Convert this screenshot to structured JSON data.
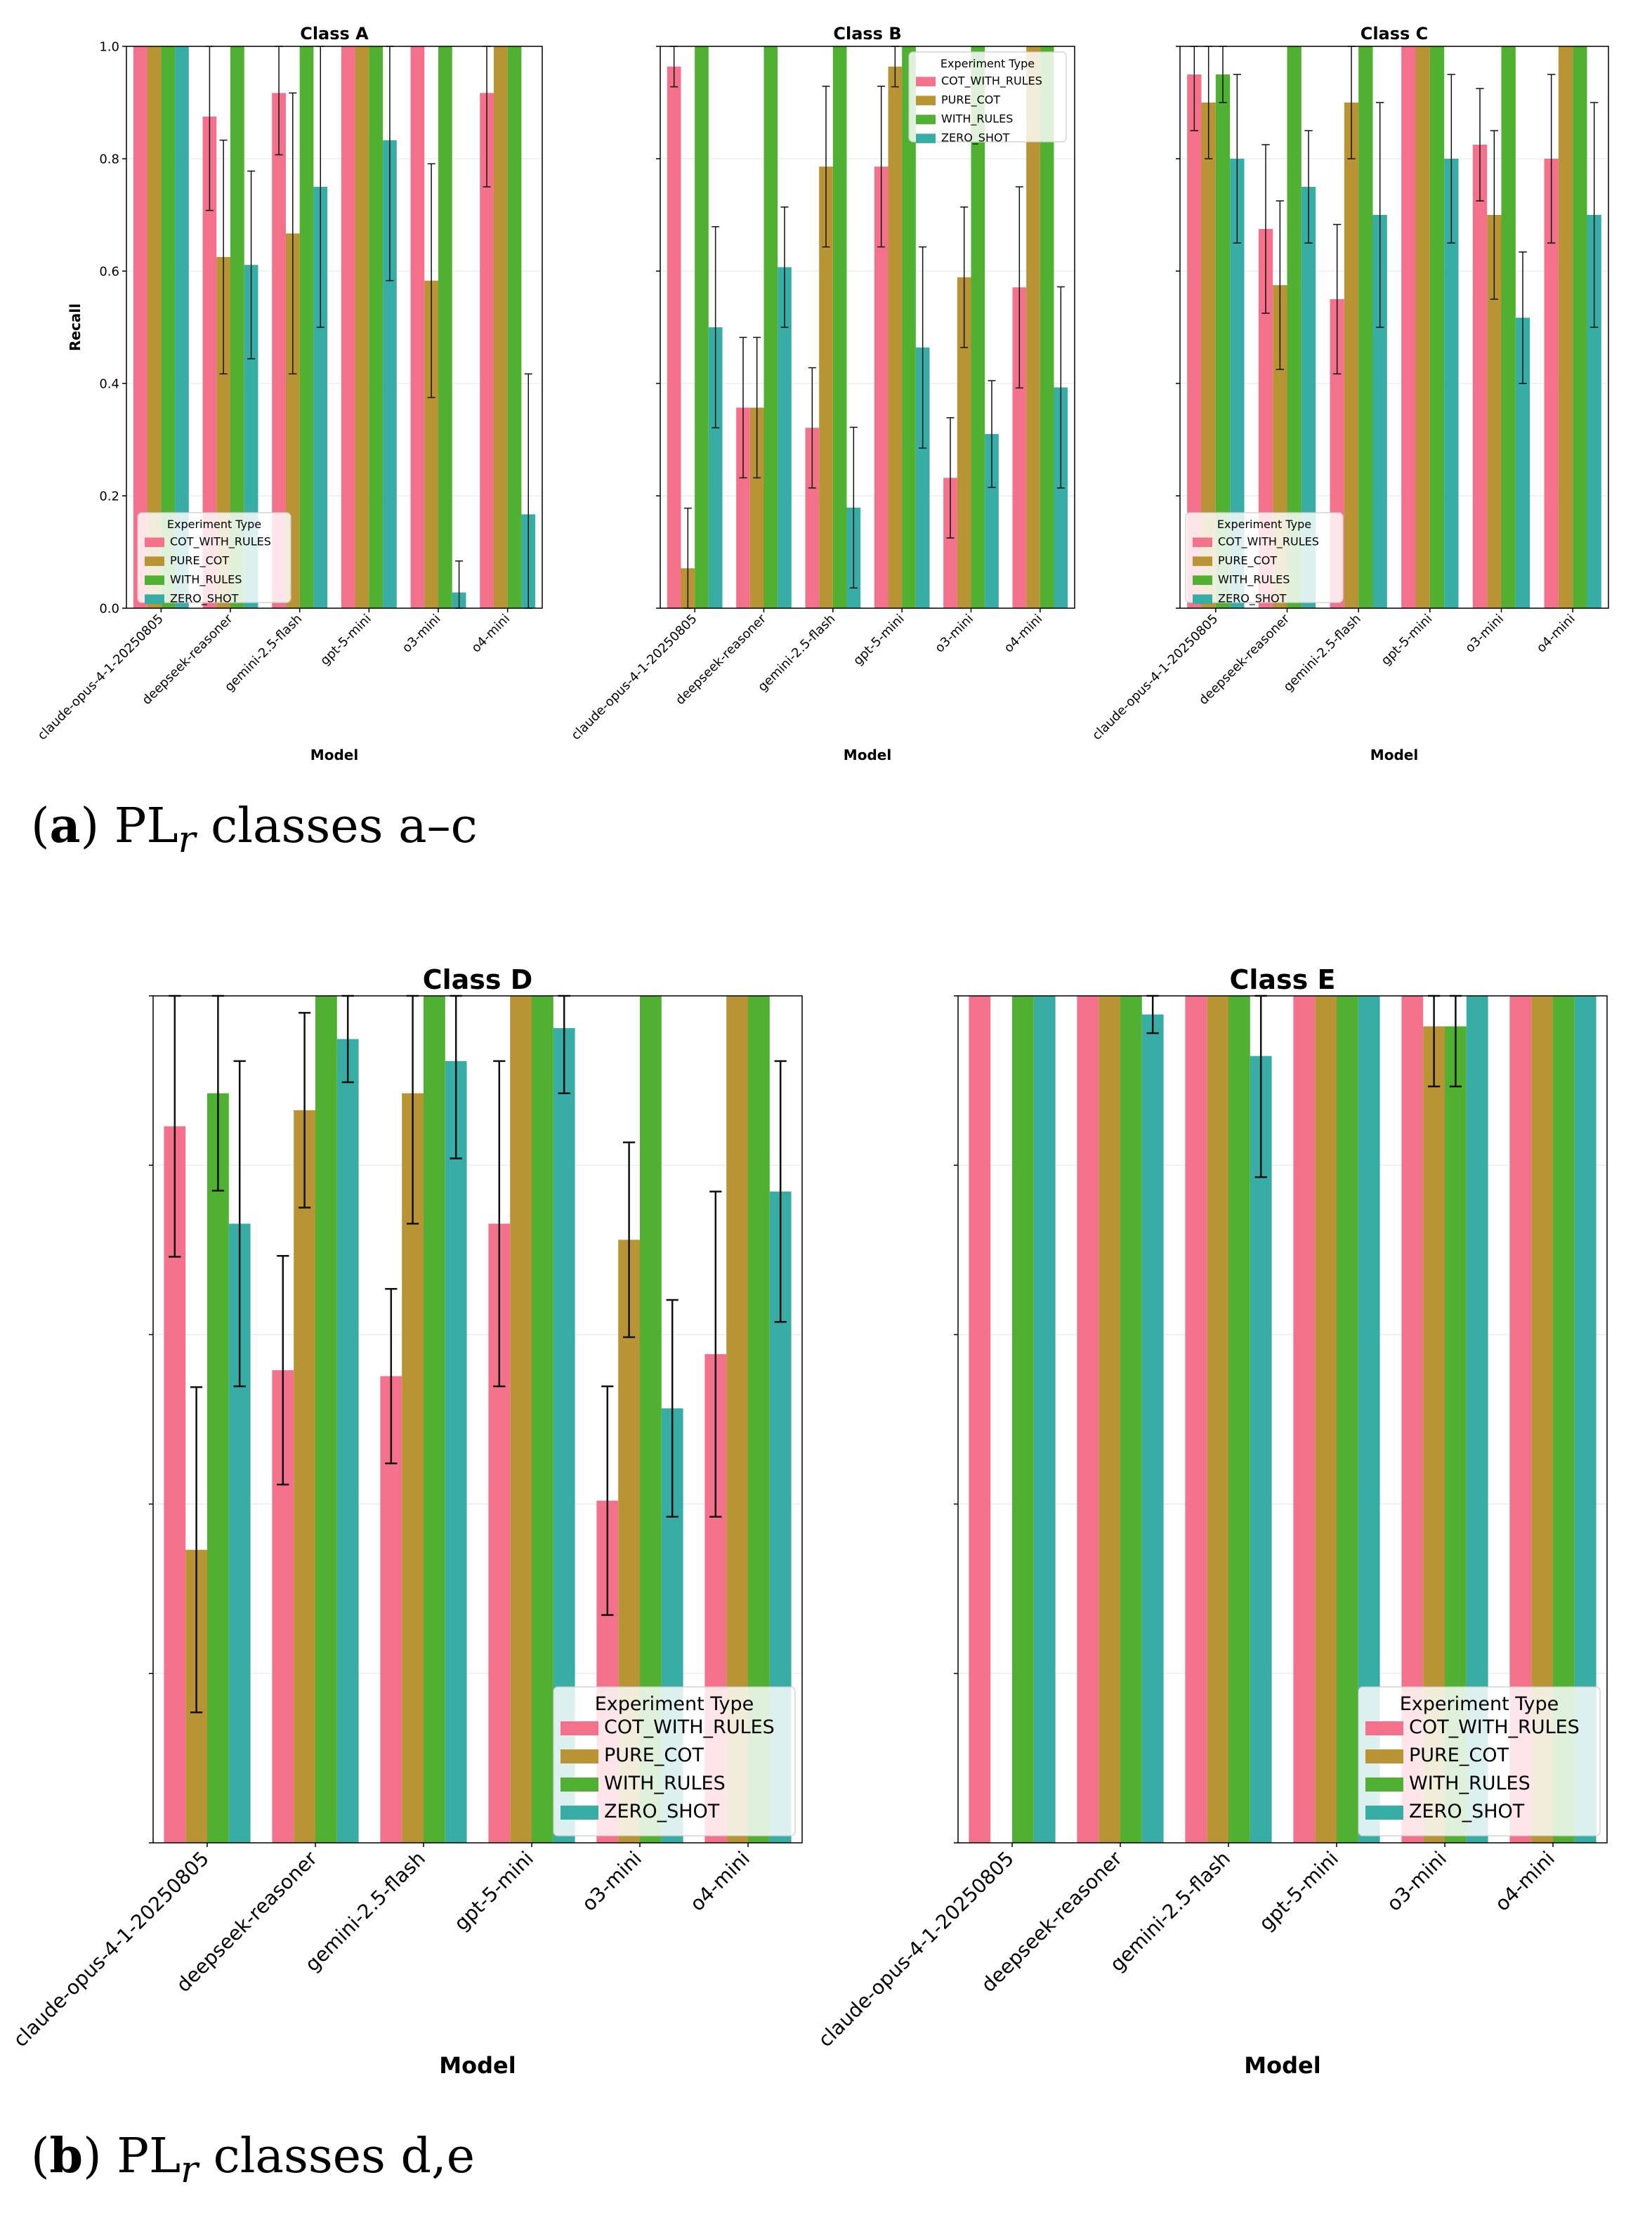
{
  "figure": {
    "caption_a": {
      "letter": "a",
      "prefix": "PL",
      "sub": "r",
      "text": "classes a–c"
    },
    "caption_b": {
      "letter": "b",
      "prefix": "PL",
      "sub": "r",
      "text": "classes d,e"
    }
  },
  "palette": {
    "COT_WITH_RULES": "#f3718a",
    "PURE_COT": "#b99435",
    "WITH_RULES": "#4fb032",
    "ZERO_SHOT": "#38ada5"
  },
  "chart_data": [
    {
      "id": "class-a",
      "type": "bar",
      "title": "Class A",
      "xlabel": "Model",
      "ylabel": "Recall",
      "ylim": [
        0,
        1.0
      ],
      "yticks": [
        "0.0",
        "0.2",
        "0.4",
        "0.6",
        "0.8",
        "1.0"
      ],
      "show_ytick_labels": true,
      "legend_title": "Experiment Type",
      "legend_position": "bottom-left",
      "categories": [
        "claude-opus-4-1-20250805",
        "deepseek-reasoner",
        "gemini-2.5-flash",
        "gpt-5-mini",
        "o3-mini",
        "o4-mini"
      ],
      "series": [
        {
          "name": "COT_WITH_RULES",
          "values": [
            1.0,
            0.875,
            0.917,
            1.0,
            1.0,
            0.917
          ],
          "err": [
            0,
            0.167,
            0.11,
            0,
            0,
            0.167
          ]
        },
        {
          "name": "PURE_COT",
          "values": [
            1.0,
            0.625,
            0.667,
            1.0,
            0.583,
            1.0
          ],
          "err": [
            0,
            0.208,
            0.25,
            0,
            0.208,
            0
          ]
        },
        {
          "name": "WITH_RULES",
          "values": [
            1.0,
            1.0,
            1.0,
            1.0,
            1.0,
            1.0
          ],
          "err": [
            0,
            0,
            0,
            0,
            0,
            0
          ]
        },
        {
          "name": "ZERO_SHOT",
          "values": [
            1.0,
            0.611,
            0.75,
            0.833,
            0.028,
            0.167
          ],
          "err": [
            0,
            0.167,
            0.25,
            0.25,
            0.056,
            0.25
          ]
        }
      ]
    },
    {
      "id": "class-b",
      "type": "bar",
      "title": "Class B",
      "xlabel": "Model",
      "ylabel": "",
      "ylim": [
        0,
        1.0
      ],
      "yticks": [
        "0.0",
        "0.2",
        "0.4",
        "0.6",
        "0.8",
        "1.0"
      ],
      "show_ytick_labels": false,
      "legend_title": "Experiment Type",
      "legend_position": "top-right",
      "categories": [
        "claude-opus-4-1-20250805",
        "deepseek-reasoner",
        "gemini-2.5-flash",
        "gpt-5-mini",
        "o3-mini",
        "o4-mini"
      ],
      "series": [
        {
          "name": "COT_WITH_RULES",
          "values": [
            0.964,
            0.357,
            0.321,
            0.786,
            0.232,
            0.571
          ],
          "err": [
            0.036,
            0.125,
            0.107,
            0.143,
            0.107,
            0.179
          ]
        },
        {
          "name": "PURE_COT",
          "values": [
            0.071,
            0.357,
            0.786,
            0.964,
            0.589,
            1.0
          ],
          "err": [
            0.107,
            0.125,
            0.143,
            0.036,
            0.125,
            0
          ]
        },
        {
          "name": "WITH_RULES",
          "values": [
            1.0,
            1.0,
            1.0,
            1.0,
            1.0,
            1.0
          ],
          "err": [
            0,
            0,
            0,
            0,
            0,
            0
          ]
        },
        {
          "name": "ZERO_SHOT",
          "values": [
            0.5,
            0.607,
            0.179,
            0.464,
            0.31,
            0.393
          ],
          "err": [
            0.179,
            0.107,
            0.143,
            0.179,
            0.095,
            0.179
          ]
        }
      ]
    },
    {
      "id": "class-c",
      "type": "bar",
      "title": "Class C",
      "xlabel": "Model",
      "ylabel": "",
      "ylim": [
        0,
        1.0
      ],
      "yticks": [
        "0.0",
        "0.2",
        "0.4",
        "0.6",
        "0.8",
        "1.0"
      ],
      "show_ytick_labels": false,
      "legend_title": "Experiment Type",
      "legend_position": "bottom-left",
      "categories": [
        "claude-opus-4-1-20250805",
        "deepseek-reasoner",
        "gemini-2.5-flash",
        "gpt-5-mini",
        "o3-mini",
        "o4-mini"
      ],
      "series": [
        {
          "name": "COT_WITH_RULES",
          "values": [
            0.95,
            0.675,
            0.55,
            1.0,
            0.825,
            0.8
          ],
          "err": [
            0.1,
            0.15,
            0.133,
            0,
            0.1,
            0.15
          ]
        },
        {
          "name": "PURE_COT",
          "values": [
            0.9,
            0.575,
            0.9,
            1.0,
            0.7,
            1.0
          ],
          "err": [
            0.1,
            0.15,
            0.1,
            0,
            0.15,
            0
          ]
        },
        {
          "name": "WITH_RULES",
          "values": [
            0.95,
            1.0,
            1.0,
            1.0,
            1.0,
            1.0
          ],
          "err": [
            0.05,
            0,
            0,
            0,
            0,
            0
          ]
        },
        {
          "name": "ZERO_SHOT",
          "values": [
            0.8,
            0.75,
            0.7,
            0.8,
            0.517,
            0.7
          ],
          "err": [
            0.15,
            0.1,
            0.2,
            0.15,
            0.117,
            0.2
          ]
        }
      ]
    },
    {
      "id": "class-d",
      "type": "bar",
      "title": "Class D",
      "xlabel": "Model",
      "ylabel": "",
      "ylim": [
        0,
        1.0
      ],
      "yticks": [
        "0.0",
        "0.2",
        "0.4",
        "0.6",
        "0.8",
        "1.0"
      ],
      "show_ytick_labels": false,
      "legend_title": "Experiment Type",
      "legend_position": "bottom-right",
      "categories": [
        "claude-opus-4-1-20250805",
        "deepseek-reasoner",
        "gemini-2.5-flash",
        "gpt-5-mini",
        "o3-mini",
        "o4-mini"
      ],
      "series": [
        {
          "name": "COT_WITH_RULES",
          "values": [
            0.846,
            0.558,
            0.551,
            0.731,
            0.404,
            0.577
          ],
          "err": [
            0.154,
            0.135,
            0.103,
            0.192,
            0.135,
            0.192
          ]
        },
        {
          "name": "PURE_COT",
          "values": [
            0.346,
            0.865,
            0.885,
            1.0,
            0.712,
            1.0
          ],
          "err": [
            0.192,
            0.115,
            0.154,
            0,
            0.115,
            0
          ]
        },
        {
          "name": "WITH_RULES",
          "values": [
            0.885,
            1.0,
            1.0,
            1.0,
            1.0,
            1.0
          ],
          "err": [
            0.115,
            0,
            0,
            0,
            0,
            0
          ]
        },
        {
          "name": "ZERO_SHOT",
          "values": [
            0.731,
            0.949,
            0.923,
            0.962,
            0.513,
            0.769
          ],
          "err": [
            0.192,
            0.051,
            0.115,
            0.077,
            0.128,
            0.154
          ]
        }
      ]
    },
    {
      "id": "class-e",
      "type": "bar",
      "title": "Class E",
      "xlabel": "Model",
      "ylabel": "",
      "ylim": [
        0,
        1.0
      ],
      "yticks": [
        "0.0",
        "0.2",
        "0.4",
        "0.6",
        "0.8",
        "1.0"
      ],
      "show_ytick_labels": false,
      "legend_title": "Experiment Type",
      "legend_position": "bottom-right",
      "categories": [
        "claude-opus-4-1-20250805",
        "deepseek-reasoner",
        "gemini-2.5-flash",
        "gpt-5-mini",
        "o3-mini",
        "o4-mini"
      ],
      "series": [
        {
          "name": "COT_WITH_RULES",
          "values": [
            1.0,
            1.0,
            1.0,
            1.0,
            1.0,
            1.0
          ],
          "err": [
            0,
            0,
            0,
            0,
            0,
            0
          ]
        },
        {
          "name": "PURE_COT",
          "values": [
            0.0,
            1.0,
            1.0,
            1.0,
            0.964,
            1.0
          ],
          "err": [
            0,
            0,
            0,
            0,
            0.071,
            0
          ]
        },
        {
          "name": "WITH_RULES",
          "values": [
            1.0,
            1.0,
            1.0,
            1.0,
            0.964,
            1.0
          ],
          "err": [
            0,
            0,
            0,
            0,
            0.071,
            0
          ]
        },
        {
          "name": "ZERO_SHOT",
          "values": [
            1.0,
            0.978,
            0.929,
            1.0,
            1.0,
            1.0
          ],
          "err": [
            0,
            0.022,
            0.143,
            0,
            0,
            0
          ]
        }
      ]
    }
  ]
}
